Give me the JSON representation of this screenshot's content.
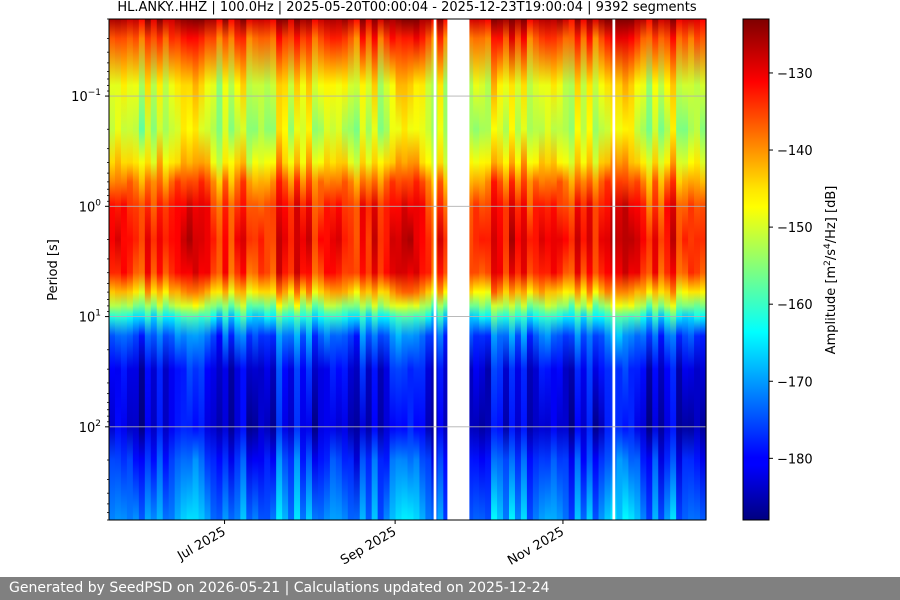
{
  "chart_data": {
    "type": "heatmap",
    "title": "HL.ANKY..HHZ | 100.0Hz | 2025-05-20T00:00:04 - 2025-12-23T19:00:04 | 9392 segments",
    "ylabel": "Period [s]",
    "y_scale": "log",
    "y_inverted": true,
    "ylim": [
      0.02,
      700
    ],
    "y_ticks": [
      {
        "value": 0.1,
        "base": "10",
        "exp": "−1"
      },
      {
        "value": 1,
        "base": "10",
        "exp": "0"
      },
      {
        "value": 10,
        "base": "10",
        "exp": "1"
      },
      {
        "value": 100,
        "base": "10",
        "exp": "2"
      }
    ],
    "x_range": [
      "2025-05-20",
      "2025-12-23"
    ],
    "x_ticks": [
      {
        "date": "2025-07-01",
        "label": "Jul 2025"
      },
      {
        "date": "2025-09-01",
        "label": "Sep 2025"
      },
      {
        "date": "2025-11-01",
        "label": "Nov 2025"
      }
    ],
    "data_gaps": [
      [
        "2025-09-15",
        "2025-09-16"
      ],
      [
        "2025-09-20",
        "2025-09-28"
      ],
      [
        "2025-11-19",
        "2025-11-20"
      ]
    ],
    "grid": true,
    "colormap": "jet",
    "colorbar": {
      "label": "Amplitude [m²/s⁴/Hz] [dB]",
      "label_main": "Amplitude [m",
      "label_tail": " [dB]",
      "range": [
        -188,
        -123
      ],
      "ticks": [
        -130,
        -140,
        -150,
        -160,
        -170,
        -180
      ],
      "tick_labels": [
        "−130",
        "−140",
        "−150",
        "−160",
        "−170",
        "−180"
      ]
    },
    "amplitude_profile": {
      "period": [
        0.02,
        0.03,
        0.08,
        0.2,
        0.4,
        0.6,
        1.0,
        2.0,
        4.0,
        6.0,
        8.0,
        10.0,
        15.0,
        30.0,
        100.0,
        200.0,
        700.0
      ],
      "db": [
        -126,
        -135,
        -148,
        -151,
        -145,
        -138,
        -133,
        -131,
        -133,
        -143,
        -153,
        -162,
        -173,
        -180,
        -182,
        -176,
        -170
      ]
    }
  },
  "footer": {
    "text": "Generated by SeedPSD on 2026-05-21 | Calculations updated on 2025-12-24"
  }
}
